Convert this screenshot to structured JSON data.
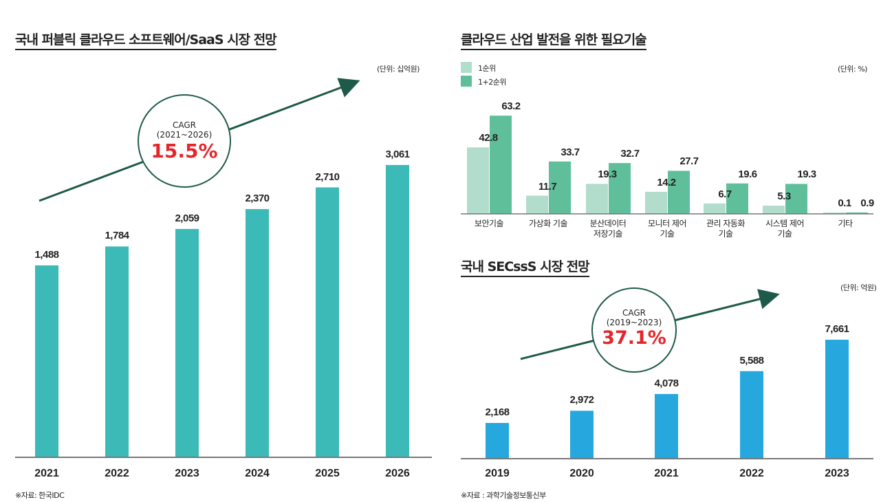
{
  "chart_data": [
    {
      "type": "bar",
      "title": "국내 퍼블릭 클라우드 소프트웨어/SaaS 시장 전망",
      "unit": "(단위: 십억원)",
      "categories": [
        "2021",
        "2022",
        "2023",
        "2024",
        "2025",
        "2026"
      ],
      "values": [
        1488,
        1784,
        2059,
        2370,
        2710,
        3061
      ],
      "value_labels": [
        "1,488",
        "1,784",
        "2,059",
        "2,370",
        "2,710",
        "3,061"
      ],
      "color": "#3bbab8",
      "annotation": {
        "label": "CAGR",
        "period": "(2021~2026)",
        "value": "15.5%"
      },
      "source": "※자료: 한국IDC"
    },
    {
      "type": "bar",
      "title": "클라우드 산업 발전을 위한 필요기술",
      "unit": "(단위: %)",
      "categories": [
        "보안기술",
        "가상화 기술",
        "분산데이터\n저장기술",
        "모니터 제어\n기술",
        "관리 자동화\n기술",
        "시스템 제어\n기술",
        "기타"
      ],
      "series": [
        {
          "name": "1순위",
          "color": "#b2dccb",
          "values": [
            42.8,
            11.7,
            19.3,
            14.2,
            6.7,
            5.3,
            0.1
          ]
        },
        {
          "name": "1+2순위",
          "color": "#5fbf9b",
          "values": [
            63.2,
            33.7,
            32.7,
            27.7,
            19.6,
            19.3,
            0.9
          ]
        }
      ],
      "legend": "top-left"
    },
    {
      "type": "bar",
      "title": "국내 SECssS 시장 전망",
      "unit": "(단위: 억원)",
      "categories": [
        "2019",
        "2020",
        "2021",
        "2022",
        "2023"
      ],
      "values": [
        2168,
        2972,
        4078,
        5588,
        7661
      ],
      "value_labels": [
        "2,168",
        "2,972",
        "4,078",
        "5,588",
        "7,661"
      ],
      "color": "#26a8df",
      "annotation": {
        "label": "CAGR",
        "period": "(2019~2023)",
        "value": "37.1%"
      },
      "source": "※자료 : 과학기술정보통신부"
    }
  ]
}
